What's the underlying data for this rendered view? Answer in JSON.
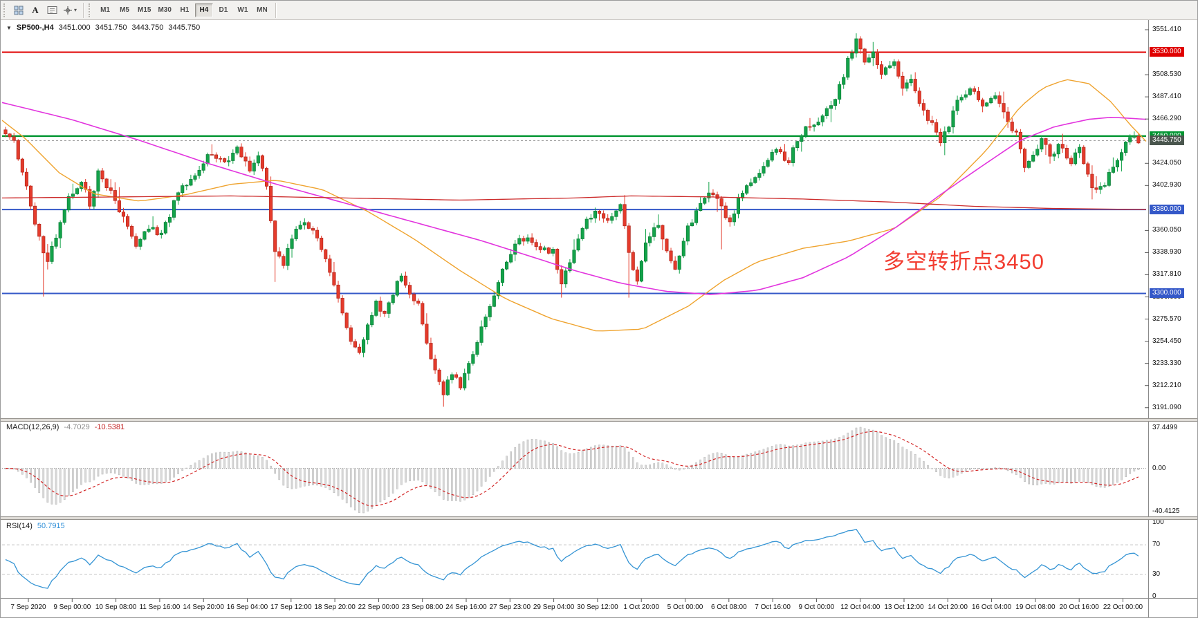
{
  "toolbar": {
    "period_buttons": [
      "M1",
      "M5",
      "M15",
      "M30",
      "H1",
      "H4",
      "D1",
      "W1",
      "MN"
    ],
    "active_period": "H4",
    "crosshair_caret": "▾"
  },
  "symbol_header": {
    "arrow": "▼",
    "symbol": "SP500-,H4",
    "open": "3451.000",
    "high": "3451.750",
    "low": "3443.750",
    "close": "3445.750"
  },
  "annotation": {
    "text": "多空转折点3450",
    "color": "#f23d31"
  },
  "price_axis": {
    "min": 3185,
    "max": 3558,
    "ticks": [
      {
        "v": 3551.41,
        "label": "3551.410"
      },
      {
        "v": 3508.53,
        "label": "3508.530"
      },
      {
        "v": 3487.41,
        "label": "3487.410"
      },
      {
        "v": 3466.29,
        "label": "3466.290"
      },
      {
        "v": 3424.05,
        "label": "3424.050"
      },
      {
        "v": 3402.93,
        "label": "3402.930"
      },
      {
        "v": 3360.05,
        "label": "3360.050"
      },
      {
        "v": 3338.93,
        "label": "3338.930"
      },
      {
        "v": 3317.81,
        "label": "3317.810"
      },
      {
        "v": 3296.69,
        "label": "3296.690"
      },
      {
        "v": 3275.57,
        "label": "3275.570"
      },
      {
        "v": 3254.45,
        "label": "3254.450"
      },
      {
        "v": 3233.33,
        "label": "3233.330"
      },
      {
        "v": 3212.21,
        "label": "3212.210"
      },
      {
        "v": 3191.09,
        "label": "3191.090"
      }
    ],
    "badges": [
      {
        "v": 3530.0,
        "label": "3530.000",
        "color": "#e00000"
      },
      {
        "v": 3450.0,
        "label": "3450.000",
        "color": "#009632"
      },
      {
        "v": 3445.75,
        "label": "3445.750",
        "color": "#4a564e"
      },
      {
        "v": 3380.0,
        "label": "3380.000",
        "color": "#3458c8"
      },
      {
        "v": 3300.0,
        "label": "3300.000",
        "color": "#3458c8"
      }
    ]
  },
  "time_axis": {
    "labels": [
      "7 Sep 2020",
      "9 Sep 00:00",
      "10 Sep 08:00",
      "11 Sep 16:00",
      "14 Sep 20:00",
      "16 Sep 04:00",
      "17 Sep 12:00",
      "18 Sep 20:00",
      "22 Sep 00:00",
      "23 Sep 08:00",
      "24 Sep 16:00",
      "27 Sep 23:00",
      "29 Sep 04:00",
      "30 Sep 12:00",
      "1 Oct 20:00",
      "5 Oct 00:00",
      "6 Oct 08:00",
      "7 Oct 16:00",
      "9 Oct 00:00",
      "12 Oct 04:00",
      "13 Oct 12:00",
      "14 Oct 20:00",
      "16 Oct 04:00",
      "19 Oct 08:00",
      "20 Oct 16:00",
      "22 Oct 00:00"
    ]
  },
  "chart_data": {
    "type": "candlestick",
    "symbol": "SP500-",
    "timeframe": "H4",
    "bars": 270,
    "up_color": "#13a34a",
    "up_stroke": "#0b7c36",
    "down_color": "#e43b2c",
    "down_stroke": "#b0251a",
    "close_anchors": [
      [
        0,
        3452
      ],
      [
        2,
        3446
      ],
      [
        4,
        3415
      ],
      [
        6,
        3385
      ],
      [
        8,
        3352
      ],
      [
        10,
        3332
      ],
      [
        12,
        3356
      ],
      [
        15,
        3390
      ],
      [
        18,
        3406
      ],
      [
        20,
        3386
      ],
      [
        22,
        3414
      ],
      [
        25,
        3396
      ],
      [
        28,
        3372
      ],
      [
        31,
        3346
      ],
      [
        34,
        3364
      ],
      [
        37,
        3356
      ],
      [
        40,
        3386
      ],
      [
        43,
        3406
      ],
      [
        46,
        3420
      ],
      [
        49,
        3434
      ],
      [
        52,
        3424
      ],
      [
        55,
        3440
      ],
      [
        58,
        3420
      ],
      [
        60,
        3431
      ],
      [
        62,
        3402
      ],
      [
        64,
        3342
      ],
      [
        66,
        3330
      ],
      [
        68,
        3354
      ],
      [
        71,
        3371
      ],
      [
        74,
        3352
      ],
      [
        77,
        3322
      ],
      [
        80,
        3282
      ],
      [
        82,
        3256
      ],
      [
        84,
        3246
      ],
      [
        86,
        3270
      ],
      [
        88,
        3291
      ],
      [
        90,
        3281
      ],
      [
        92,
        3301
      ],
      [
        94,
        3316
      ],
      [
        96,
        3301
      ],
      [
        98,
        3291
      ],
      [
        100,
        3256
      ],
      [
        102,
        3224
      ],
      [
        104,
        3204
      ],
      [
        106,
        3226
      ],
      [
        108,
        3212
      ],
      [
        110,
        3232
      ],
      [
        112,
        3256
      ],
      [
        115,
        3286
      ],
      [
        118,
        3321
      ],
      [
        121,
        3346
      ],
      [
        124,
        3356
      ],
      [
        127,
        3341
      ],
      [
        130,
        3341
      ],
      [
        132,
        3306
      ],
      [
        134,
        3331
      ],
      [
        137,
        3361
      ],
      [
        140,
        3381
      ],
      [
        143,
        3371
      ],
      [
        146,
        3386
      ],
      [
        148,
        3341
      ],
      [
        150,
        3311
      ],
      [
        152,
        3351
      ],
      [
        155,
        3366
      ],
      [
        157,
        3341
      ],
      [
        159,
        3326
      ],
      [
        162,
        3361
      ],
      [
        165,
        3386
      ],
      [
        168,
        3396
      ],
      [
        170,
        3381
      ],
      [
        172,
        3366
      ],
      [
        174,
        3391
      ],
      [
        177,
        3406
      ],
      [
        180,
        3421
      ],
      [
        183,
        3436
      ],
      [
        186,
        3426
      ],
      [
        188,
        3446
      ],
      [
        190,
        3456
      ],
      [
        193,
        3466
      ],
      [
        196,
        3481
      ],
      [
        198,
        3496
      ],
      [
        200,
        3521
      ],
      [
        202,
        3541
      ],
      [
        204,
        3521
      ],
      [
        206,
        3531
      ],
      [
        208,
        3511
      ],
      [
        211,
        3521
      ],
      [
        213,
        3496
      ],
      [
        215,
        3506
      ],
      [
        217,
        3481
      ],
      [
        220,
        3461
      ],
      [
        222,
        3441
      ],
      [
        224,
        3461
      ],
      [
        226,
        3486
      ],
      [
        229,
        3496
      ],
      [
        232,
        3476
      ],
      [
        235,
        3486
      ],
      [
        237,
        3471
      ],
      [
        240,
        3451
      ],
      [
        242,
        3421
      ],
      [
        244,
        3431
      ],
      [
        246,
        3446
      ],
      [
        248,
        3431
      ],
      [
        250,
        3441
      ],
      [
        253,
        3426
      ],
      [
        255,
        3436
      ],
      [
        257,
        3411
      ],
      [
        259,
        3396
      ],
      [
        261,
        3406
      ],
      [
        263,
        3421
      ],
      [
        265,
        3436
      ],
      [
        267,
        3448
      ],
      [
        269,
        3445.75
      ]
    ],
    "wick_overrides": [
      {
        "i": 9,
        "low": 3297
      },
      {
        "i": 64,
        "low": 3311
      },
      {
        "i": 104,
        "low": 3192
      },
      {
        "i": 108,
        "low": 3209
      },
      {
        "i": 132,
        "low": 3296
      },
      {
        "i": 148,
        "low": 3296
      },
      {
        "i": 170,
        "low": 3342
      },
      {
        "i": 202,
        "high": 3548
      }
    ],
    "levels": [
      {
        "price": 3530.0,
        "color": "#e00000",
        "width": 2
      },
      {
        "price": 3450.0,
        "color": "#009632",
        "width": 2.5
      },
      {
        "price": 3380.0,
        "color": "#3458c8",
        "width": 2
      },
      {
        "price": 3300.0,
        "color": "#3458c8",
        "width": 2
      }
    ],
    "bid_line": {
      "price": 3445.75,
      "color": "#909090"
    },
    "moving_averages": [
      {
        "name": "ma-fast-orange",
        "color": "#efa32e",
        "width": 1.4,
        "points": [
          [
            0,
            3465
          ],
          [
            0.02,
            3448
          ],
          [
            0.05,
            3415
          ],
          [
            0.08,
            3395
          ],
          [
            0.12,
            3388
          ],
          [
            0.16,
            3394
          ],
          [
            0.2,
            3404
          ],
          [
            0.24,
            3408
          ],
          [
            0.28,
            3399
          ],
          [
            0.32,
            3378
          ],
          [
            0.36,
            3352
          ],
          [
            0.4,
            3322
          ],
          [
            0.44,
            3295
          ],
          [
            0.48,
            3276
          ],
          [
            0.52,
            3264
          ],
          [
            0.56,
            3266
          ],
          [
            0.6,
            3288
          ],
          [
            0.63,
            3312
          ],
          [
            0.66,
            3330
          ],
          [
            0.7,
            3343
          ],
          [
            0.74,
            3350
          ],
          [
            0.78,
            3362
          ],
          [
            0.82,
            3392
          ],
          [
            0.86,
            3436
          ],
          [
            0.89,
            3478
          ],
          [
            0.91,
            3496
          ],
          [
            0.93,
            3504
          ],
          [
            0.95,
            3500
          ],
          [
            0.97,
            3482
          ],
          [
            0.985,
            3462
          ],
          [
            1,
            3445
          ]
        ]
      },
      {
        "name": "ma-mid-magenta",
        "color": "#e234de",
        "width": 1.6,
        "points": [
          [
            0,
            3482
          ],
          [
            0.06,
            3466
          ],
          [
            0.12,
            3446
          ],
          [
            0.18,
            3424
          ],
          [
            0.24,
            3404
          ],
          [
            0.3,
            3386
          ],
          [
            0.36,
            3368
          ],
          [
            0.42,
            3350
          ],
          [
            0.46,
            3336
          ],
          [
            0.5,
            3322
          ],
          [
            0.54,
            3310
          ],
          [
            0.58,
            3302
          ],
          [
            0.62,
            3299
          ],
          [
            0.66,
            3303
          ],
          [
            0.7,
            3315
          ],
          [
            0.74,
            3335
          ],
          [
            0.78,
            3362
          ],
          [
            0.82,
            3394
          ],
          [
            0.86,
            3424
          ],
          [
            0.89,
            3446
          ],
          [
            0.92,
            3459
          ],
          [
            0.95,
            3466
          ],
          [
            0.97,
            3468
          ],
          [
            1,
            3466
          ]
        ]
      },
      {
        "name": "ma-slow-red",
        "color": "#cc2a2a",
        "width": 1.3,
        "points": [
          [
            0,
            3391
          ],
          [
            0.1,
            3392
          ],
          [
            0.2,
            3393
          ],
          [
            0.3,
            3391
          ],
          [
            0.4,
            3389
          ],
          [
            0.5,
            3391
          ],
          [
            0.55,
            3393
          ],
          [
            0.62,
            3392
          ],
          [
            0.7,
            3390
          ],
          [
            0.78,
            3387
          ],
          [
            0.85,
            3383
          ],
          [
            0.92,
            3381
          ],
          [
            1,
            3380
          ]
        ]
      }
    ],
    "macd": {
      "label": "MACD(12,26,9)",
      "main_value": "-4.7029",
      "signal_value": "-10.5381",
      "fast": 12,
      "slow": 26,
      "signal": 9,
      "axis_max": 37.4499,
      "axis_min": -40.4125,
      "axis_labels": [
        "37.4499",
        "0.00",
        "-40.4125"
      ],
      "hist_fill": "#dadada",
      "hist_stroke": "#b4b4b4",
      "signal_color": "#d22222"
    },
    "rsi": {
      "label": "RSI(14)",
      "value": "50.7915",
      "period": 14,
      "levels": [
        70,
        30
      ],
      "axis_labels": [
        "100",
        "70",
        "30",
        "0"
      ],
      "line_color": "#3494d4"
    }
  }
}
